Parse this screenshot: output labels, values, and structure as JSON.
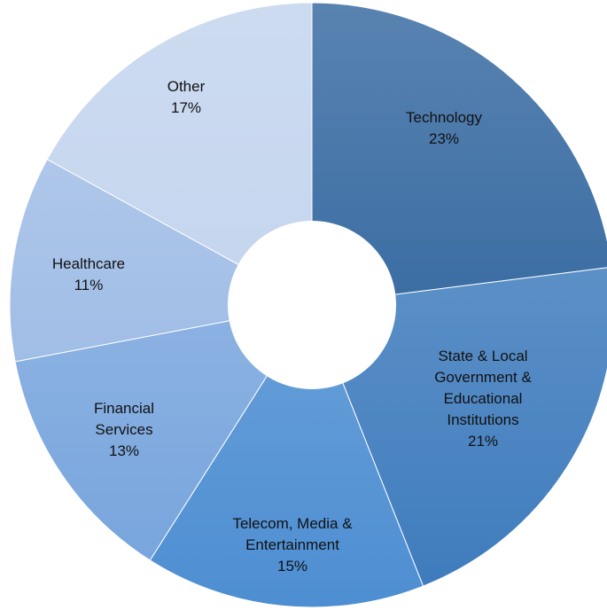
{
  "chart_data": {
    "type": "pie",
    "categories": [
      "Technology",
      "State & Local Government & Educational Institutions",
      "Telecom, Media & Entertainment",
      "Financial Services",
      "Healthcare",
      "Other"
    ],
    "values": [
      23,
      21,
      15,
      13,
      11,
      17
    ],
    "value_labels": [
      "23%",
      "21%",
      "15%",
      "13%",
      "11%",
      "17%"
    ],
    "colors": [
      "#3b6da3",
      "#3f7cbd",
      "#4d8ed2",
      "#78a5dd",
      "#a0bde6",
      "#c4d5ee"
    ]
  }
}
